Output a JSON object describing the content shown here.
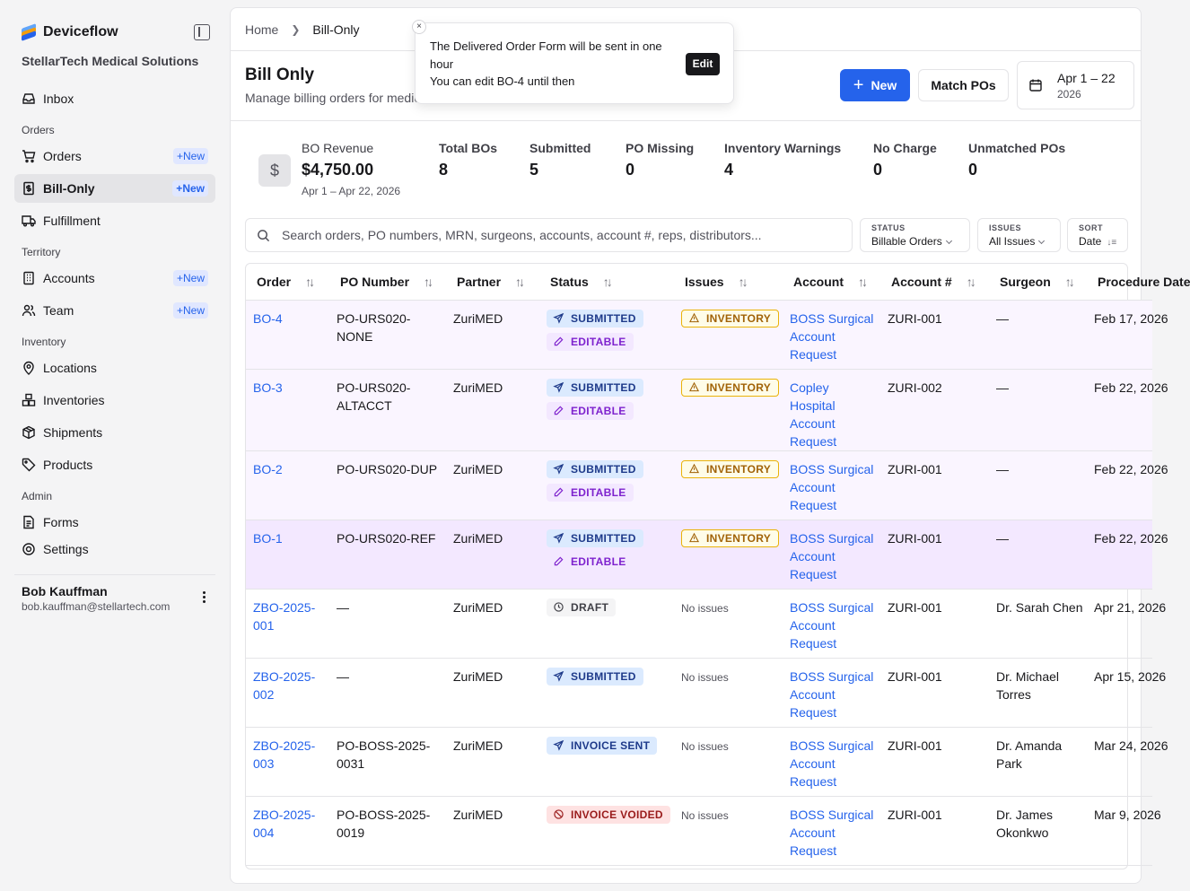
{
  "app": {
    "name": "Deviceflow",
    "org": "StellarTech Medical Solutions"
  },
  "sidebar": {
    "inbox": "Inbox",
    "sections": {
      "orders": "Orders",
      "territory": "Territory",
      "inventory": "Inventory",
      "admin": "Admin"
    },
    "items": {
      "orders": "Orders",
      "bill_only": "Bill-Only",
      "fulfillment": "Fulfillment",
      "accounts": "Accounts",
      "team": "Team",
      "locations": "Locations",
      "inventories": "Inventories",
      "shipments": "Shipments",
      "products": "Products",
      "forms": "Forms",
      "settings": "Settings"
    },
    "new_label": "New"
  },
  "user": {
    "name": "Bob Kauffman",
    "email": "bob.kauffman@stellartech.com"
  },
  "breadcrumb": {
    "home": "Home",
    "current": "Bill-Only"
  },
  "header": {
    "title": "Bill Only",
    "subtitle": "Manage billing orders for medical devices",
    "new_button": "New",
    "match_button": "Match POs",
    "date_range": "Apr 1 – 22",
    "date_year": "2026"
  },
  "toast": {
    "message": "The Delivered Order Form will be sent in one hour",
    "sub": "You can edit BO-4 until then",
    "action": "Edit",
    "close": "×"
  },
  "stats": {
    "icon": "$",
    "revenue_label": "BO Revenue",
    "revenue_value": "$4,750.00",
    "revenue_range": "Apr 1 – Apr 22, 2026",
    "total_label": "Total BOs",
    "total_value": "8",
    "submitted_label": "Submitted",
    "submitted_value": "5",
    "po_missing_label": "PO Missing",
    "po_missing_value": "0",
    "inv_warn_label": "Inventory Warnings",
    "inv_warn_value": "4",
    "no_charge_label": "No Charge",
    "no_charge_value": "0",
    "unmatched_label": "Unmatched POs",
    "unmatched_value": "0"
  },
  "search": {
    "placeholder": "Search orders, PO numbers, MRN, surgeons, accounts, account #, reps, distributors..."
  },
  "filters": {
    "status_label": "STATUS",
    "status_value": "Billable Orders",
    "issues_label": "ISSUES",
    "issues_value": "All Issues",
    "sort_label": "SORT",
    "sort_value": "Date"
  },
  "table": {
    "columns": [
      "Order",
      "PO Number",
      "Partner",
      "Status",
      "Issues",
      "Account",
      "Account #",
      "Surgeon",
      "Procedure Date"
    ],
    "rows": [
      {
        "order": "BO-4",
        "po": "PO-URS020-NONE",
        "partner": "ZuriMED",
        "status": "SUBMITTED",
        "status2": "EDITABLE",
        "issue": "INVENTORY",
        "account": "BOSS Surgical Account Request",
        "acct_no": "ZURI-001",
        "surgeon": "—",
        "date": "Feb 17, 2026"
      },
      {
        "order": "BO-3",
        "po": "PO-URS020-ALTACCT",
        "partner": "ZuriMED",
        "status": "SUBMITTED",
        "status2": "EDITABLE",
        "issue": "INVENTORY",
        "account": "Copley Hospital Account Request",
        "acct_no": "ZURI-002",
        "surgeon": "—",
        "date": "Feb 22, 2026"
      },
      {
        "order": "BO-2",
        "po": "PO-URS020-DUP",
        "partner": "ZuriMED",
        "status": "SUBMITTED",
        "status2": "EDITABLE",
        "issue": "INVENTORY",
        "account": "BOSS Surgical Account Request",
        "acct_no": "ZURI-001",
        "surgeon": "—",
        "date": "Feb 22, 2026"
      },
      {
        "order": "BO-1",
        "po": "PO-URS020-REF",
        "partner": "ZuriMED",
        "status": "SUBMITTED",
        "status2": "EDITABLE",
        "issue": "INVENTORY",
        "account": "BOSS Surgical Account Request",
        "acct_no": "ZURI-001",
        "surgeon": "—",
        "date": "Feb 22, 2026"
      },
      {
        "order": "ZBO-2025-001",
        "po": "—",
        "partner": "ZuriMED",
        "status": "DRAFT",
        "status2": "",
        "issue": "No issues",
        "account": "BOSS Surgical Account Request",
        "acct_no": "ZURI-001",
        "surgeon": "Dr. Sarah Chen",
        "date": "Apr 21, 2026"
      },
      {
        "order": "ZBO-2025-002",
        "po": "—",
        "partner": "ZuriMED",
        "status": "SUBMITTED",
        "status2": "",
        "issue": "No issues",
        "account": "BOSS Surgical Account Request",
        "acct_no": "ZURI-001",
        "surgeon": "Dr. Michael Torres",
        "date": "Apr 15, 2026"
      },
      {
        "order": "ZBO-2025-003",
        "po": "PO-BOSS-2025-0031",
        "partner": "ZuriMED",
        "status": "INVOICE SENT",
        "status2": "",
        "issue": "No issues",
        "account": "BOSS Surgical Account Request",
        "acct_no": "ZURI-001",
        "surgeon": "Dr. Amanda Park",
        "date": "Mar 24, 2026"
      },
      {
        "order": "ZBO-2025-004",
        "po": "PO-BOSS-2025-0019",
        "partner": "ZuriMED",
        "status": "INVOICE VOIDED",
        "status2": "",
        "issue": "No issues",
        "account": "BOSS Surgical Account Request",
        "acct_no": "ZURI-001",
        "surgeon": "Dr. James Okonkwo",
        "date": "Mar 9, 2026"
      }
    ]
  },
  "colors": {
    "accent": "#2563eb",
    "submitted": "#dbeafe",
    "editable": "#f3e8ff",
    "warning": "#eab308",
    "voided": "#fee2e2"
  }
}
